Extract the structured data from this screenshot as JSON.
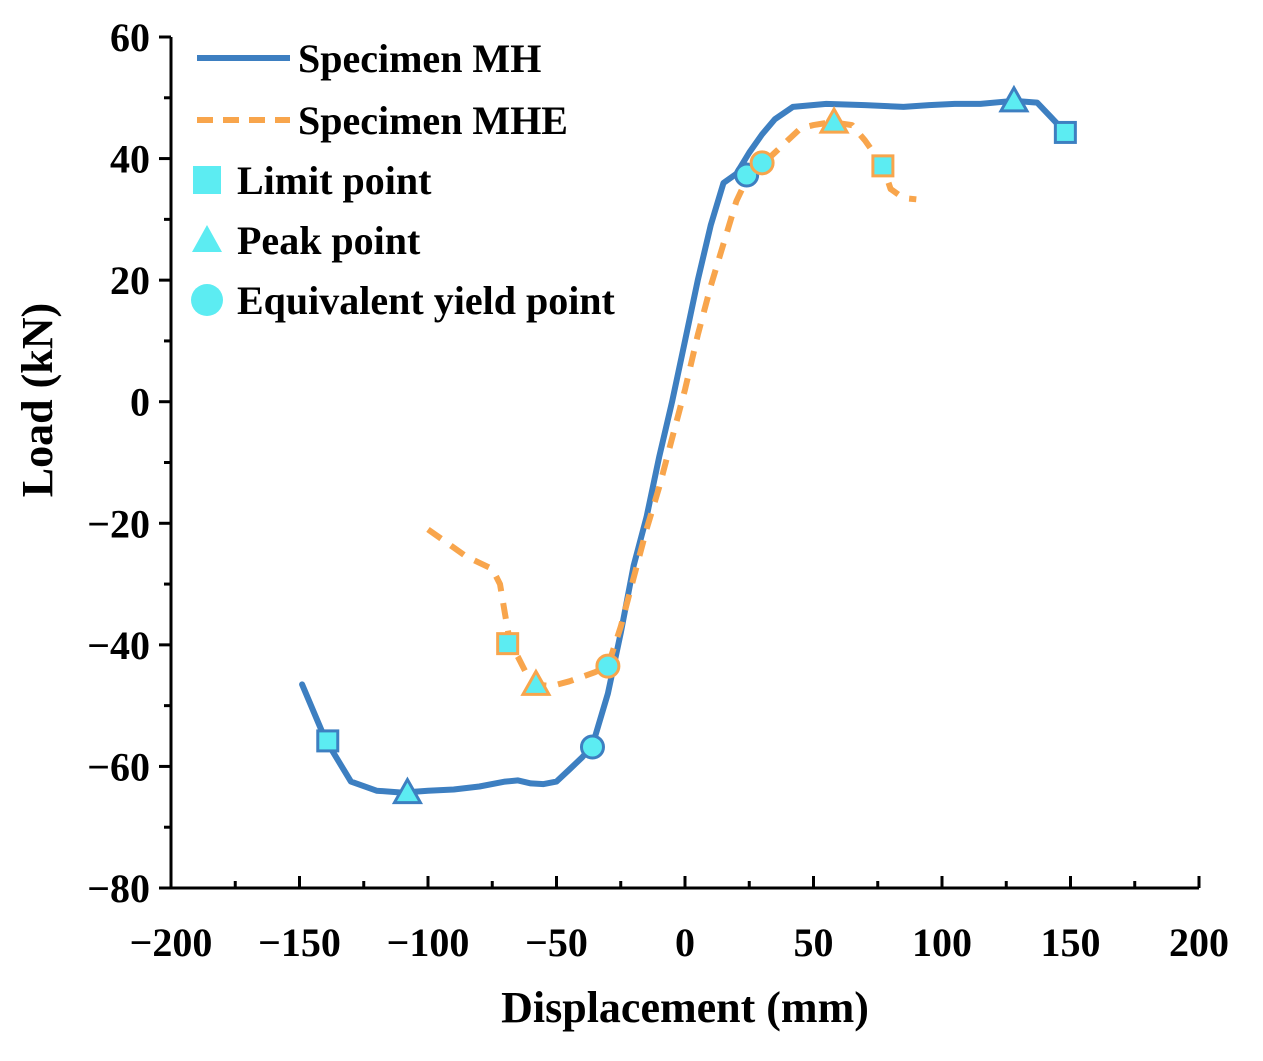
{
  "chart_data": {
    "type": "line",
    "title": "",
    "xlabel": "Displacement (mm)",
    "ylabel": "Load (kN)",
    "xlim": [
      -200,
      200
    ],
    "ylim": [
      -80,
      60
    ],
    "xticks": [
      -200,
      -150,
      -100,
      -50,
      0,
      50,
      100,
      150,
      200
    ],
    "yticks": [
      -80,
      -60,
      -40,
      -20,
      0,
      20,
      40,
      60
    ],
    "xtick_labels": [
      "−200",
      "−150",
      "−100",
      "−50",
      "0",
      "50",
      "100",
      "150",
      "200"
    ],
    "ytick_labels": [
      "−80",
      "−60",
      "−40",
      "−20",
      "0",
      "20",
      "40",
      "60"
    ],
    "grid": false,
    "legend_position": "top-left",
    "colors": {
      "mh": "#3d7fc1",
      "mhe": "#f8a54c",
      "marker_fill": "#5cecf2"
    },
    "series": [
      {
        "name": "Specimen MH",
        "style": "solid",
        "x": [
          -149,
          -140,
          -130,
          -120,
          -110,
          -100,
          -90,
          -80,
          -70,
          -65,
          -60,
          -55,
          -50,
          -45,
          -40,
          -36,
          -30,
          -25,
          -20,
          -15,
          -10,
          -5,
          0,
          5,
          10,
          15,
          20,
          25,
          30,
          35,
          42,
          55,
          70,
          85,
          95,
          105,
          115,
          128,
          137,
          142,
          148
        ],
        "y": [
          -46.5,
          -55.5,
          -62.5,
          -64,
          -64.3,
          -64,
          -63.8,
          -63.3,
          -62.5,
          -62.3,
          -62.8,
          -62.9,
          -62.5,
          -60.5,
          -58.5,
          -56.5,
          -48,
          -38,
          -27,
          -19,
          -9,
          0,
          10,
          20,
          29,
          36,
          37.5,
          41,
          44,
          46.5,
          48.5,
          49,
          48.8,
          48.5,
          48.8,
          49,
          49,
          49.5,
          49.2,
          47,
          44.3
        ]
      },
      {
        "name": "Specimen MHE",
        "style": "dashed",
        "x": [
          -100,
          -95,
          -90,
          -85,
          -80,
          -75,
          -72,
          -70,
          -68,
          -65,
          -62,
          -58,
          -52,
          -45,
          -35,
          -30,
          -25,
          -20,
          -15,
          -10,
          -5,
          0,
          5,
          10,
          15,
          20,
          25,
          30,
          35,
          40,
          45,
          50,
          57,
          65,
          70,
          75,
          77,
          80,
          85,
          90
        ],
        "y": [
          -21,
          -22.5,
          -24,
          -25.5,
          -26.5,
          -27.5,
          -30,
          -35,
          -39.8,
          -42,
          -44.5,
          -46.5,
          -46.8,
          -46,
          -44.5,
          -43.5,
          -37,
          -29,
          -21,
          -14,
          -6,
          2,
          11,
          19,
          26,
          33,
          37.5,
          39,
          41,
          43,
          45,
          45.5,
          46,
          45.5,
          43,
          40,
          38.8,
          35,
          33.5,
          33.3
        ]
      }
    ],
    "markers": [
      {
        "series": "Specimen MH",
        "type": "Limit point",
        "x": -139,
        "y": -55.8
      },
      {
        "series": "Specimen MH",
        "type": "Limit point",
        "x": 148,
        "y": 44.3
      },
      {
        "series": "Specimen MH",
        "type": "Peak point",
        "x": -108,
        "y": -64.3
      },
      {
        "series": "Specimen MH",
        "type": "Peak point",
        "x": 128,
        "y": 49.5
      },
      {
        "series": "Specimen MH",
        "type": "Equivalent yield point",
        "x": -36,
        "y": -56.8
      },
      {
        "series": "Specimen MH",
        "type": "Equivalent yield point",
        "x": 24,
        "y": 37.3
      },
      {
        "series": "Specimen MHE",
        "type": "Limit point",
        "x": -69,
        "y": -39.8
      },
      {
        "series": "Specimen MHE",
        "type": "Limit point",
        "x": 77,
        "y": 38.8
      },
      {
        "series": "Specimen MHE",
        "type": "Peak point",
        "x": -58,
        "y": -46.5
      },
      {
        "series": "Specimen MHE",
        "type": "Peak point",
        "x": 58,
        "y": 46
      },
      {
        "series": "Specimen MHE",
        "type": "Equivalent yield point",
        "x": -30,
        "y": -43.5
      },
      {
        "series": "Specimen MHE",
        "type": "Equivalent yield point",
        "x": 30,
        "y": 39.3
      }
    ],
    "legend": [
      "Specimen MH",
      "Specimen MHE",
      "Limit point",
      "Peak point",
      "Equivalent yield point"
    ]
  }
}
